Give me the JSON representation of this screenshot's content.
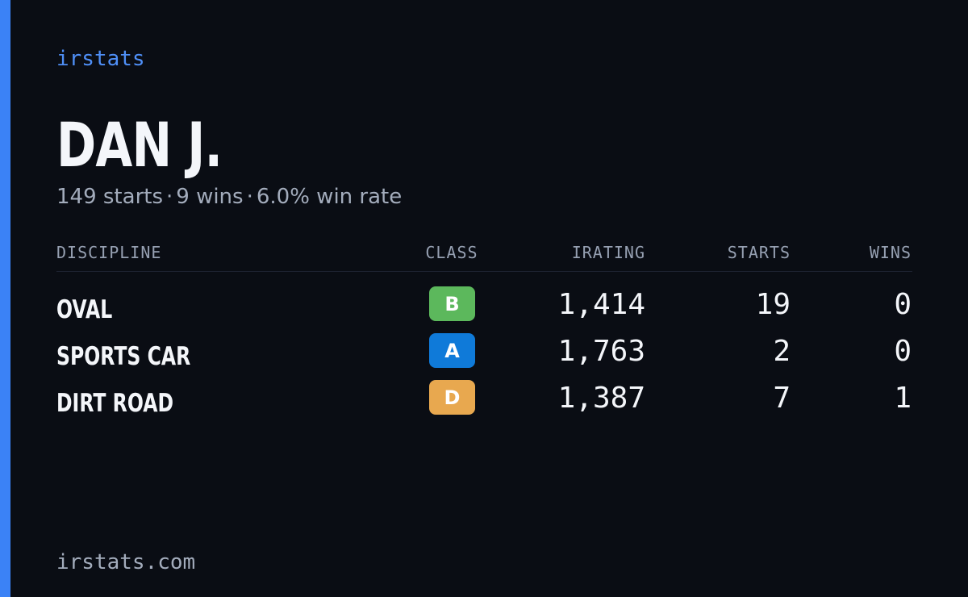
{
  "brand": "irstats",
  "player": {
    "name": "DAN J.",
    "starts_text": "149 starts",
    "wins_text": "9 wins",
    "win_rate_text": "6.0% win rate",
    "separator": "·"
  },
  "table": {
    "headers": {
      "discipline": "DISCIPLINE",
      "class": "CLASS",
      "irating": "IRATING",
      "starts": "STARTS",
      "wins": "WINS"
    },
    "rows": [
      {
        "discipline": "OVAL",
        "class": "B",
        "class_color": "#5cb85c",
        "irating": "1,414",
        "starts": "19",
        "wins": "0"
      },
      {
        "discipline": "SPORTS CAR",
        "class": "A",
        "class_color": "#0f7ad9",
        "irating": "1,763",
        "starts": "2",
        "wins": "0"
      },
      {
        "discipline": "DIRT ROAD",
        "class": "D",
        "class_color": "#e8a84f",
        "irating": "1,387",
        "starts": "7",
        "wins": "1"
      }
    ]
  },
  "footer": "irstats.com",
  "colors": {
    "background": "#0a0d14",
    "accent": "#3b82f6"
  }
}
